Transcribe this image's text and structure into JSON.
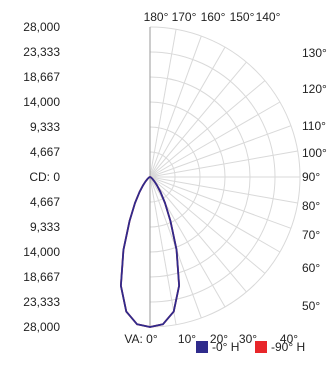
{
  "chart_data": {
    "type": "polar",
    "intensity_labels": [
      "28,000",
      "23,333",
      "18,667",
      "14,000",
      "9,333",
      "4,667",
      "CD: 0",
      "4,667",
      "9,333",
      "14,000",
      "18,667",
      "23,333",
      "28,000"
    ],
    "intensity_range": [
      0,
      28000
    ],
    "angle_labels_top": [
      "180°",
      "170°",
      "160°",
      "150°",
      "140°"
    ],
    "angle_labels_right": [
      "130°",
      "120°",
      "110°",
      "100°",
      "90°",
      "80°",
      "70°",
      "60°",
      "50°"
    ],
    "angle_labels_bottom": [
      "VA: 0°",
      "10°",
      "20°",
      "30°",
      "40°"
    ],
    "grid": true,
    "series": [
      {
        "name": "-0° H",
        "color": "#2f2b8c",
        "points": [
          {
            "angle": 0,
            "cd": 28000
          },
          {
            "angle": 5,
            "cd": 27600
          },
          {
            "angle": 10,
            "cd": 25500
          },
          {
            "angle": 15,
            "cd": 21000
          },
          {
            "angle": 20,
            "cd": 14500
          },
          {
            "angle": 25,
            "cd": 9000
          },
          {
            "angle": 30,
            "cd": 5600
          },
          {
            "angle": 35,
            "cd": 3400
          },
          {
            "angle": 40,
            "cd": 2000
          },
          {
            "angle": 45,
            "cd": 1200
          },
          {
            "angle": 50,
            "cd": 700
          },
          {
            "angle": 60,
            "cd": 300
          },
          {
            "angle": 70,
            "cd": 100
          },
          {
            "angle": 80,
            "cd": 30
          },
          {
            "angle": 90,
            "cd": 0
          }
        ]
      },
      {
        "name": "-90° H",
        "color": "#e8262a",
        "points": [
          {
            "angle": 0,
            "cd": 28000
          },
          {
            "angle": 5,
            "cd": 27600
          },
          {
            "angle": 10,
            "cd": 25500
          },
          {
            "angle": 15,
            "cd": 21000
          },
          {
            "angle": 20,
            "cd": 14500
          },
          {
            "angle": 25,
            "cd": 9000
          },
          {
            "angle": 30,
            "cd": 5600
          },
          {
            "angle": 35,
            "cd": 3400
          },
          {
            "angle": 40,
            "cd": 2000
          },
          {
            "angle": 45,
            "cd": 1200
          },
          {
            "angle": 50,
            "cd": 700
          },
          {
            "angle": 60,
            "cd": 300
          },
          {
            "angle": 70,
            "cd": 100
          },
          {
            "angle": 80,
            "cd": 30
          },
          {
            "angle": 90,
            "cd": 0
          }
        ]
      }
    ],
    "legend": {
      "position": "bottom-right",
      "entries": [
        {
          "label": "-0° H",
          "color": "#2f2b8c"
        },
        {
          "label": "-90° H",
          "color": "#e8262a"
        }
      ]
    }
  }
}
